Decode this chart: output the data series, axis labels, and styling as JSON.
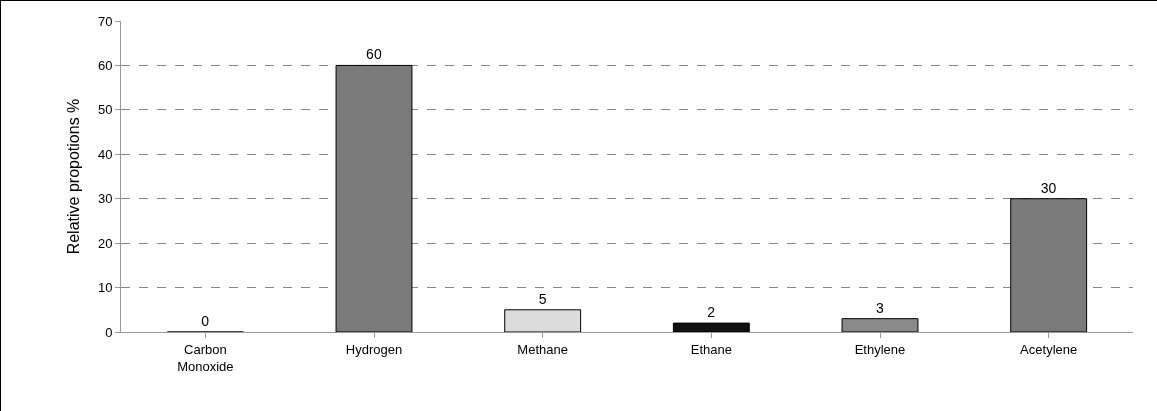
{
  "chart_data": {
    "type": "bar",
    "ylabel": "Relative propotions %",
    "categories": [
      "Carbon\nMonoxide",
      "Hydrogen",
      "Methane",
      "Ethane",
      "Ethylene",
      "Acetylene"
    ],
    "values": [
      0,
      60,
      5,
      2,
      3,
      30
    ],
    "colors": [
      "#000000",
      "#7a7a7a",
      "#dcdcdc",
      "#111111",
      "#8a8a8a",
      "#7a7a7a"
    ],
    "ylim": [
      0,
      70
    ],
    "yticks": [
      0,
      10,
      20,
      30,
      40,
      50,
      60,
      70
    ],
    "grid": "y",
    "legend": false,
    "data_labels": true
  }
}
